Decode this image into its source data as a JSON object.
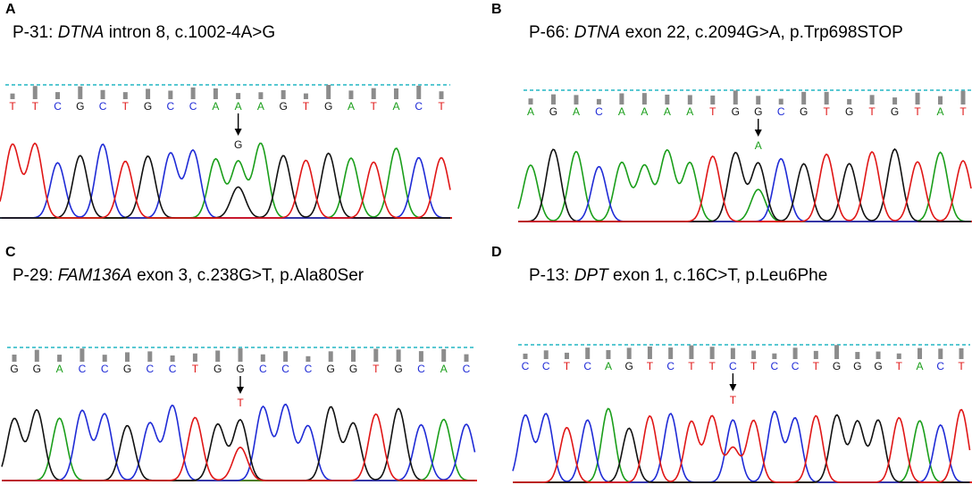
{
  "colors": {
    "A": "#1a9e1a",
    "C": "#1f2bd6",
    "G": "#111111",
    "T": "#e01616",
    "quality": "#8c8c8c",
    "threshold": "#22b5c4"
  },
  "panels": [
    {
      "letter": "A",
      "id": "P-31",
      "gene": "DTNA",
      "desc": "intron 8, c.1002-4A>G",
      "bases": [
        "T",
        "T",
        "C",
        "G",
        "C",
        "T",
        "G",
        "C",
        "C",
        "A",
        "A",
        "A",
        "G",
        "T",
        "G",
        "A",
        "T",
        "A",
        "C",
        "T"
      ],
      "variant_index": 10,
      "variant_base": "G"
    },
    {
      "letter": "B",
      "id": "P-66",
      "gene": "DTNA",
      "desc": "exon 22, c.2094G>A, p.Trp698STOP",
      "bases": [
        "A",
        "G",
        "A",
        "C",
        "A",
        "A",
        "A",
        "A",
        "T",
        "G",
        "G",
        "C",
        "G",
        "T",
        "G",
        "T",
        "G",
        "T",
        "A",
        "T"
      ],
      "variant_index": 10,
      "variant_base": "A"
    },
    {
      "letter": "C",
      "id": "P-29",
      "gene": "FAM136A",
      "desc": "exon 3, c.238G>T, p.Ala80Ser",
      "bases": [
        "G",
        "G",
        "A",
        "C",
        "C",
        "G",
        "C",
        "C",
        "T",
        "G",
        "G",
        "C",
        "C",
        "C",
        "G",
        "G",
        "T",
        "G",
        "C",
        "A",
        "C"
      ],
      "variant_index": 10,
      "variant_base": "T"
    },
    {
      "letter": "D",
      "id": "P-13",
      "gene": "DPT",
      "desc": "exon 1, c.16C>T, p.Leu6Phe",
      "bases": [
        "C",
        "C",
        "T",
        "C",
        "A",
        "G",
        "T",
        "C",
        "T",
        "T",
        "C",
        "T",
        "C",
        "C",
        "T",
        "G",
        "G",
        "G",
        "T",
        "A",
        "C",
        "T"
      ],
      "variant_index": 10,
      "variant_base": "T"
    }
  ]
}
